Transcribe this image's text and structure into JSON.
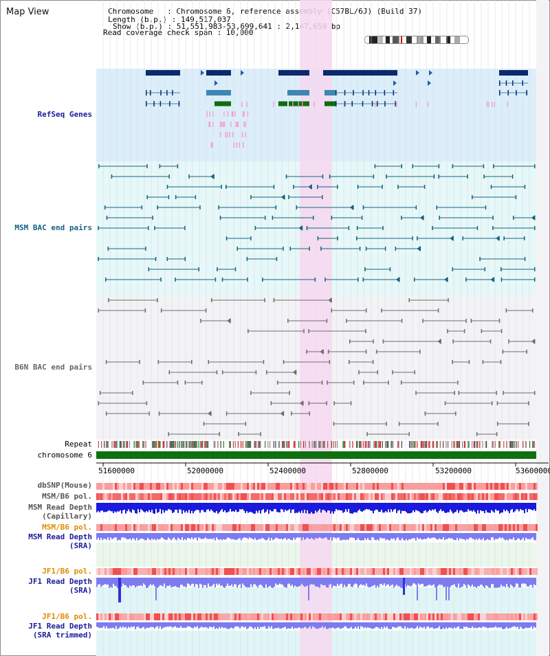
{
  "header": {
    "view_title": "Map View",
    "chromosome_line": "Chromosome   : Chromosome 6, reference assembly (C57BL/6J) (Build 37)",
    "length_line": "Length (b.p.) : 149,517,037",
    "show_line": "Show (b.p.) : 51,551,983-53,699,641 : 2,147,659 bp",
    "span_line": "Read coverage check span : 10,000"
  },
  "tracks": {
    "refseq": "RefSeq Genes",
    "msm_bac": "MSM BAC end pairs",
    "b6n_bac": "B6N BAC end pairs",
    "repeat": "Repeat",
    "chromosome": "chromosome 6",
    "dbsnp": "dbSNP(Mouse)",
    "msm_b6_pol": "MSM/B6 pol.",
    "msm_read_depth_cap_1": "MSM Read Depth",
    "msm_read_depth_cap_2": "(Capillary)",
    "msm_b6_pol_2": "MSM/B6 pol.",
    "msm_read_depth_sra_1": "MSM Read Depth",
    "msm_read_depth_sra_2": "(SRA)",
    "jf1_b6_pol": "JF1/B6 pol.",
    "jf1_read_depth_1": "JF1 Read Depth",
    "jf1_read_depth_2": "(SRA)",
    "jf1_b6_pol_2": "JF1/B6 pol.",
    "jf1_trim_1": "JF1 Read Depth",
    "jf1_trim_2": "(SRA trimmed)"
  },
  "axis": {
    "ticks": [
      "51600000",
      "52000000",
      "52400000",
      "52800000",
      "53200000",
      "53600000"
    ]
  },
  "colors": {
    "refseq_bg": "#dbeefa",
    "msm_bg": "#e6f8f8",
    "b6n_bg": "#f3f3f6",
    "highlight": "#f6d8f0",
    "gene_dark": "#0c2a6b",
    "gene_mid": "#3f86b3",
    "gene_green": "#116b11",
    "msm_pair": "#16627e",
    "b6n_pair": "#6e6e6e",
    "chromosome_bar": "#0f700f",
    "depth_blue": "#1a1adc",
    "depth_light_blue": "#7c7cf0",
    "label_blue": "#1b1b9c",
    "label_teal": "#16627e",
    "label_gray": "#555555",
    "label_orange": "#e08a00"
  }
}
